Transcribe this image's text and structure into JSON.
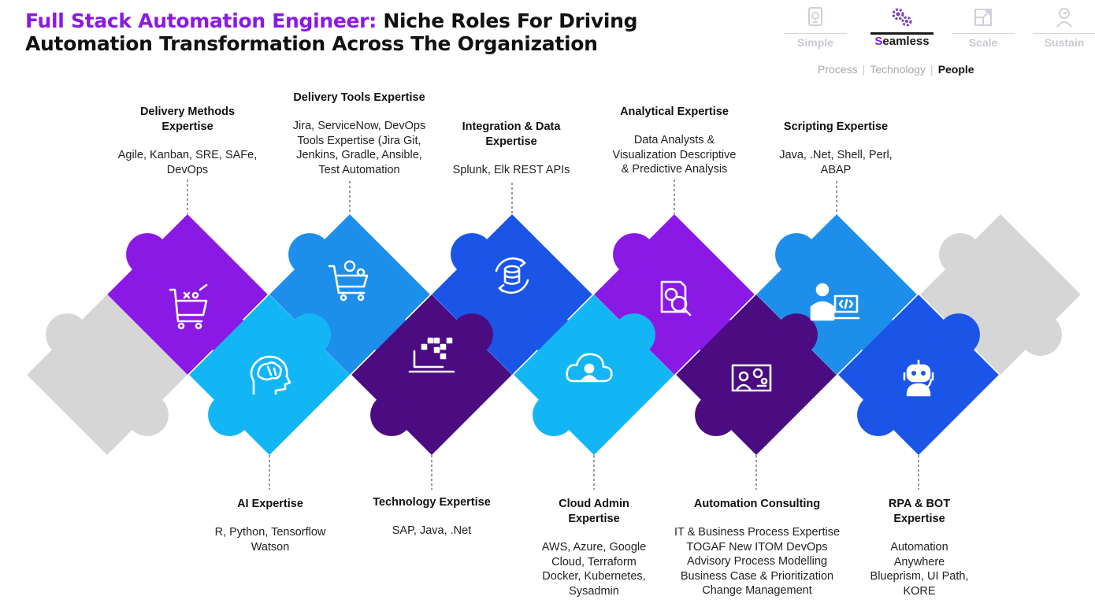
{
  "header": {
    "title_accent": "Full Stack Automation Engineer:",
    "title_rest_line1": "Niche Roles For Driving",
    "title_line2": "Automation Transformation Across The Organization"
  },
  "nav": {
    "tabs": [
      {
        "label": "Simple",
        "icon": "device-icon",
        "active": false
      },
      {
        "label": "Seamless",
        "first_letter": "S",
        "rest": "eamless",
        "icon": "gears-icon",
        "active": true
      },
      {
        "label": "Scale",
        "icon": "expand-icon",
        "active": false
      },
      {
        "label": "Sustain",
        "icon": "person-leaf-icon",
        "active": false
      }
    ],
    "subnav": {
      "items": [
        "Process",
        "Technology",
        "People"
      ],
      "active": "People",
      "separator": "|"
    }
  },
  "colors": {
    "accent_purple": "#8a19e6",
    "medium_blue": "#1d8fea",
    "light_blue": "#13b6f5",
    "royal_blue": "#1a55e8",
    "dark_purple": "#4b0c82",
    "gray": "#d8d8d8"
  },
  "roles": [
    {
      "title": "Delivery Methods Expertise",
      "title_lines": [
        "Delivery Methods",
        "Expertise"
      ],
      "desc_lines": [
        "Agile, Kanban, SRE, SAFe,",
        "DevOps"
      ],
      "icon": "cart-strategy-icon"
    },
    {
      "title": "Delivery Tools Expertise",
      "title_lines": [
        "Delivery Tools Expertise"
      ],
      "desc_lines": [
        "Jira, ServiceNow, DevOps",
        "Tools Expertise (Jira Git,",
        "Jenkins, Gradle, Ansible,",
        "Test Automation"
      ],
      "icon": "cart-gear-icon"
    },
    {
      "title": "Integration & Data Expertise",
      "title_lines": [
        "Integration & Data",
        "Expertise"
      ],
      "desc_lines": [
        "Splunk, Elk REST APIs"
      ],
      "icon": "database-sync-icon"
    },
    {
      "title": "Analytical Expertise",
      "title_lines": [
        "Analytical Expertise"
      ],
      "desc_lines": [
        "Data Analysts &",
        "Visualization Descriptive",
        "& Predictive Analysis"
      ],
      "icon": "report-search-icon"
    },
    {
      "title": "Scripting Expertise",
      "title_lines": [
        "Scripting Expertise"
      ],
      "desc_lines": [
        "Java, .Net, Shell, Perl,",
        "ABAP"
      ],
      "icon": "developer-code-icon"
    },
    {
      "title": "AI Expertise",
      "title_lines": [
        "AI Expertise"
      ],
      "desc_lines": [
        "R, Python, Tensorflow",
        "Watson"
      ],
      "icon": "brain-head-icon"
    },
    {
      "title": "Technology Expertise",
      "title_lines": [
        "Technology Expertise"
      ],
      "desc_lines": [
        "SAP, Java, .Net"
      ],
      "icon": "laptop-pixels-icon"
    },
    {
      "title": "Cloud Admin Expertise",
      "title_lines": [
        "Cloud Admin",
        "Expertise"
      ],
      "desc_lines": [
        "AWS, Azure, Google",
        "Cloud, Terraform",
        "Docker, Kubernetes,",
        "Sysadmin"
      ],
      "icon": "cloud-user-icon"
    },
    {
      "title": "Automation Consulting",
      "title_lines": [
        "Automation Consulting"
      ],
      "desc_lines": [
        "IT & Business Process Expertise",
        "TOGAF New ITOM DevOps",
        "Advisory Process Modelling",
        "Business Case & Prioritization",
        "Change Management"
      ],
      "icon": "presentation-gear-icon"
    },
    {
      "title": "RPA & BOT Expertise",
      "title_lines": [
        "RPA & BOT",
        "Expertise"
      ],
      "desc_lines": [
        "Automation",
        "Anywhere",
        "Blueprism, UI Path,",
        "KORE"
      ],
      "icon": "robot-icon"
    }
  ]
}
